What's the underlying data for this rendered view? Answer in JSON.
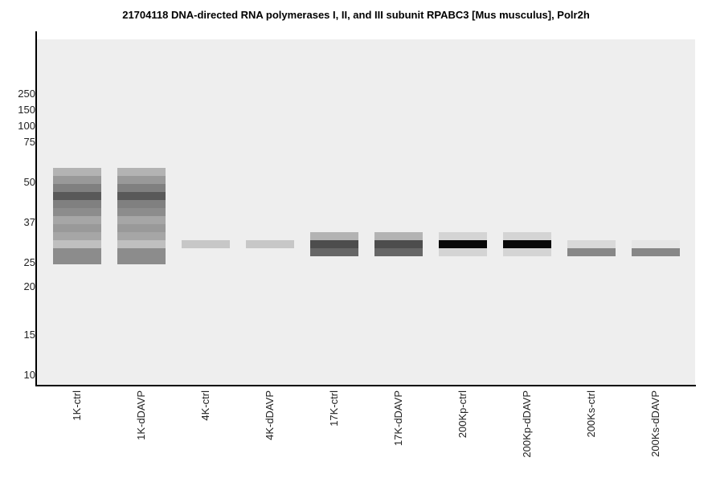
{
  "chart_data": {
    "type": "heatmap",
    "title": "21704118 DNA-directed RNA polymerases I, II, and III subunit RPABC3 [Mus musculus], Polr2h",
    "y_ticks": [
      "250",
      "150",
      "100",
      "75",
      "50",
      "37",
      "25",
      "20",
      "15",
      "10"
    ],
    "lanes": [
      {
        "name": "1K-ctrl",
        "bands": [
          {
            "row": 17,
            "intensity": 0.3
          },
          {
            "row": 18,
            "intensity": 0.4
          },
          {
            "row": 19,
            "intensity": 0.5
          },
          {
            "row": 20,
            "intensity": 0.65
          },
          {
            "row": 21,
            "intensity": 0.5
          },
          {
            "row": 22,
            "intensity": 0.45
          },
          {
            "row": 23,
            "intensity": 0.35
          },
          {
            "row": 24,
            "intensity": 0.4
          },
          {
            "row": 25,
            "intensity": 0.35
          },
          {
            "row": 26,
            "intensity": 0.25
          },
          {
            "row": 27,
            "intensity": 0.45
          },
          {
            "row": 28,
            "intensity": 0.45
          }
        ]
      },
      {
        "name": "1K-dDAVP",
        "bands": [
          {
            "row": 17,
            "intensity": 0.3
          },
          {
            "row": 18,
            "intensity": 0.4
          },
          {
            "row": 19,
            "intensity": 0.5
          },
          {
            "row": 20,
            "intensity": 0.65
          },
          {
            "row": 21,
            "intensity": 0.5
          },
          {
            "row": 22,
            "intensity": 0.45
          },
          {
            "row": 23,
            "intensity": 0.35
          },
          {
            "row": 24,
            "intensity": 0.4
          },
          {
            "row": 25,
            "intensity": 0.35
          },
          {
            "row": 26,
            "intensity": 0.25
          },
          {
            "row": 27,
            "intensity": 0.45
          },
          {
            "row": 28,
            "intensity": 0.45
          }
        ]
      },
      {
        "name": "4K-ctrl",
        "bands": [
          {
            "row": 26,
            "intensity": 0.22
          }
        ]
      },
      {
        "name": "4K-dDAVP",
        "bands": [
          {
            "row": 26,
            "intensity": 0.22
          }
        ]
      },
      {
        "name": "17K-ctrl",
        "bands": [
          {
            "row": 25,
            "intensity": 0.3
          },
          {
            "row": 26,
            "intensity": 0.7
          },
          {
            "row": 27,
            "intensity": 0.6
          }
        ]
      },
      {
        "name": "17K-dDAVP",
        "bands": [
          {
            "row": 25,
            "intensity": 0.3
          },
          {
            "row": 26,
            "intensity": 0.7
          },
          {
            "row": 27,
            "intensity": 0.6
          }
        ]
      },
      {
        "name": "200Kp-ctrl",
        "bands": [
          {
            "row": 25,
            "intensity": 0.17
          },
          {
            "row": 26,
            "intensity": 0.97
          },
          {
            "row": 27,
            "intensity": 0.17
          }
        ]
      },
      {
        "name": "200Kp-dDAVP",
        "bands": [
          {
            "row": 25,
            "intensity": 0.17
          },
          {
            "row": 26,
            "intensity": 0.97
          },
          {
            "row": 27,
            "intensity": 0.17
          }
        ]
      },
      {
        "name": "200Ks-ctrl",
        "bands": [
          {
            "row": 26,
            "intensity": 0.15
          },
          {
            "row": 27,
            "intensity": 0.47
          }
        ]
      },
      {
        "name": "200Ks-dDAVP",
        "bands": [
          {
            "row": 26,
            "intensity": 0.1
          },
          {
            "row": 27,
            "intensity": 0.47
          }
        ]
      }
    ],
    "colors": {
      "plot_background": "#eeeeee",
      "axis": "#000000"
    }
  }
}
